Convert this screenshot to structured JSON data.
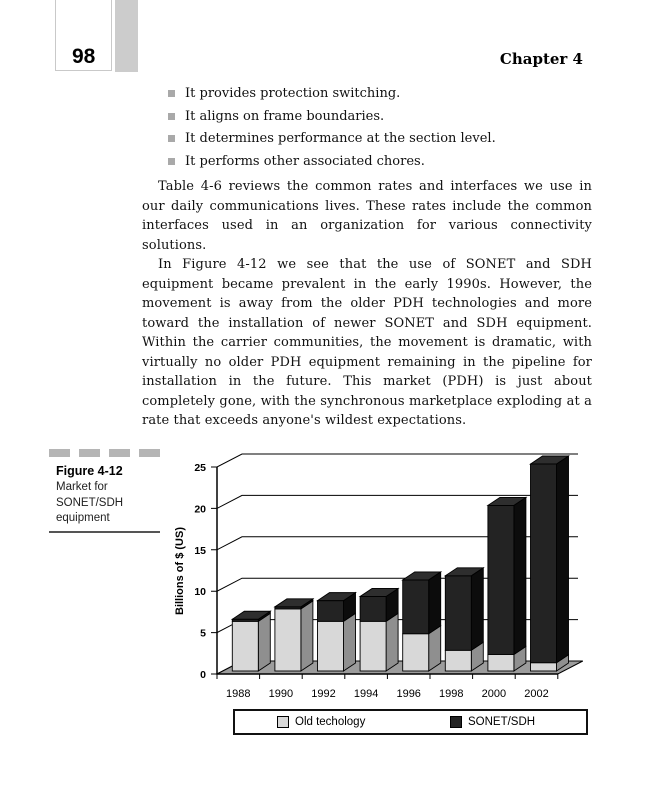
{
  "header": {
    "page_number": "98",
    "chapter": "Chapter 4"
  },
  "bullets": [
    "It provides protection switching.",
    "It aligns on frame boundaries.",
    "It determines performance at the section level.",
    "It performs other associated chores."
  ],
  "paragraphs": [
    "Table 4-6 reviews the common rates and interfaces we use in our daily communications lives. These rates include the common interfaces used in an organization for various connectivity solutions.",
    "In Figure 4-12 we see that the use of SONET and SDH equipment became prevalent in the early 1990s. However, the movement is away from the older PDH technologies and more toward the installation of newer SONET and SDH equipment. Within the carrier communities, the movement is dramatic, with virtually no older PDH equipment remaining in the pipeline for installation in the future. This market (PDH) is just about completely gone, with the synchronous marketplace exploding at a rate that exceeds anyone's wildest expectations."
  ],
  "figure": {
    "label": "Figure 4-12",
    "caption": "Market for SONET/SDH equipment"
  },
  "chart_data": {
    "type": "bar",
    "stacked": true,
    "style": "3d",
    "title": "",
    "xlabel": "",
    "ylabel": "Billions of $ (US)",
    "categories": [
      "1988",
      "1990",
      "1992",
      "1994",
      "1996",
      "1998",
      "2000",
      "2002"
    ],
    "series": [
      {
        "name": "Old techology",
        "color": "#d8d8d8",
        "side_color": "#8f8f8f",
        "values": [
          6,
          7.5,
          6,
          6,
          4.5,
          2.5,
          2,
          1
        ]
      },
      {
        "name": "SONET/SDH",
        "color": "#232323",
        "side_color": "#0c0c0c",
        "values": [
          0.25,
          0.25,
          2.5,
          3,
          6.5,
          9,
          18,
          24
        ]
      }
    ],
    "yticks": [
      0,
      5,
      10,
      15,
      20,
      25
    ],
    "ylim": [
      0,
      25
    ],
    "grid": true,
    "legend_position": "bottom",
    "floor_color": "#9c9c9c"
  }
}
